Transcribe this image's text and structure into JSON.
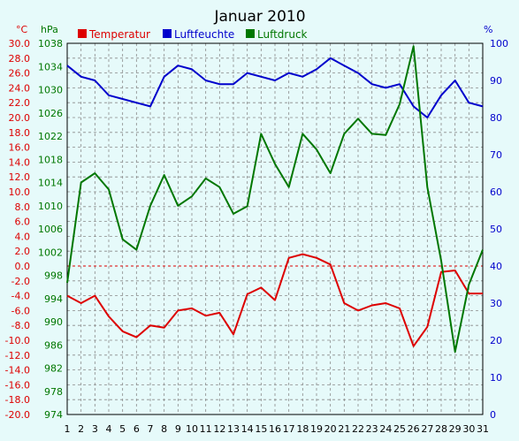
{
  "chart_data": {
    "type": "line",
    "title": "Januar 2010",
    "left_unit": "°C",
    "pressure_unit": "hPa",
    "right_unit": "%",
    "x": [
      1,
      2,
      3,
      4,
      5,
      6,
      7,
      8,
      9,
      10,
      11,
      12,
      13,
      14,
      15,
      16,
      17,
      18,
      19,
      20,
      21,
      22,
      23,
      24,
      25,
      26,
      27,
      28,
      29,
      30,
      31
    ],
    "x_tick_labels": [
      "1",
      "2",
      "3",
      "4",
      "5",
      "6",
      "7",
      "8",
      "9",
      "10",
      "11",
      "12",
      "13",
      "14",
      "15",
      "16",
      "17",
      "18",
      "19",
      "20",
      "21",
      "22",
      "23",
      "24",
      "25",
      "26",
      "27",
      "28",
      "29",
      "30",
      "31"
    ],
    "temperature_axis": {
      "ylim": [
        -20,
        30
      ],
      "tick_labels": [
        "30.0",
        "28.0",
        "26.0",
        "24.0",
        "22.0",
        "20.0",
        "18.0",
        "16.0",
        "14.0",
        "12.0",
        "10.0",
        "8.0",
        "6.0",
        "4.0",
        "2.0",
        "0.0",
        "-2.0",
        "-4.0",
        "-6.0",
        "-8.0",
        "-10.0",
        "-12.0",
        "-14.0",
        "-16.0",
        "-18.0",
        "-20.0"
      ],
      "color": "#dd0000"
    },
    "pressure_axis": {
      "ylim": [
        974,
        1038
      ],
      "tick_labels": [
        "1038",
        "1034",
        "1030",
        "1026",
        "1022",
        "1018",
        "1014",
        "1010",
        "1006",
        "1002",
        "998",
        "994",
        "990",
        "986",
        "982",
        "978",
        "974"
      ],
      "color": "#007700"
    },
    "humidity_axis": {
      "ylim": [
        0,
        100
      ],
      "tick_labels": [
        "100",
        "90",
        "80",
        "70",
        "60",
        "50",
        "40",
        "30",
        "20",
        "10",
        "0"
      ],
      "color": "#0000cc"
    },
    "grid": true,
    "reference_line_temperature": 0,
    "legend": {
      "placement": "top"
    },
    "series": [
      {
        "name": "Temperatur",
        "axis": "temperature",
        "color": "#dd0000",
        "values": [
          -4.0,
          -5.0,
          -4.0,
          -6.8,
          -8.8,
          -9.6,
          -8.0,
          -8.3,
          -6.0,
          -5.7,
          -6.7,
          -6.3,
          -9.2,
          -3.8,
          -2.9,
          -4.6,
          1.1,
          1.6,
          1.1,
          0.2,
          -5.0,
          -6.0,
          -5.3,
          -5.0,
          -5.7,
          -10.8,
          -8.2,
          -0.8,
          -0.6,
          -3.7,
          -3.7
        ]
      },
      {
        "name": "Luftfeuchte",
        "axis": "humidity",
        "color": "#0000cc",
        "values": [
          94,
          91,
          90,
          86,
          85,
          84,
          83,
          91,
          94,
          93,
          90,
          89,
          89,
          92,
          91,
          90,
          92,
          91,
          93,
          96,
          94,
          92,
          89,
          88,
          89,
          83,
          80,
          86,
          90,
          84,
          83
        ]
      },
      {
        "name": "Luftdruck",
        "axis": "pressure",
        "color": "#007700",
        "values": [
          996.7,
          1014.0,
          1015.6,
          1012.8,
          1004.2,
          1002.4,
          1010.0,
          1015.3,
          1010.0,
          1011.6,
          1014.7,
          1013.2,
          1008.6,
          1009.9,
          1022.4,
          1017.2,
          1013.2,
          1022.4,
          1019.7,
          1015.6,
          1022.4,
          1025.0,
          1022.4,
          1022.2,
          1027.5,
          1037.5,
          1013.2,
          1000.5,
          984.8,
          996.4,
          1002.4
        ]
      }
    ]
  }
}
